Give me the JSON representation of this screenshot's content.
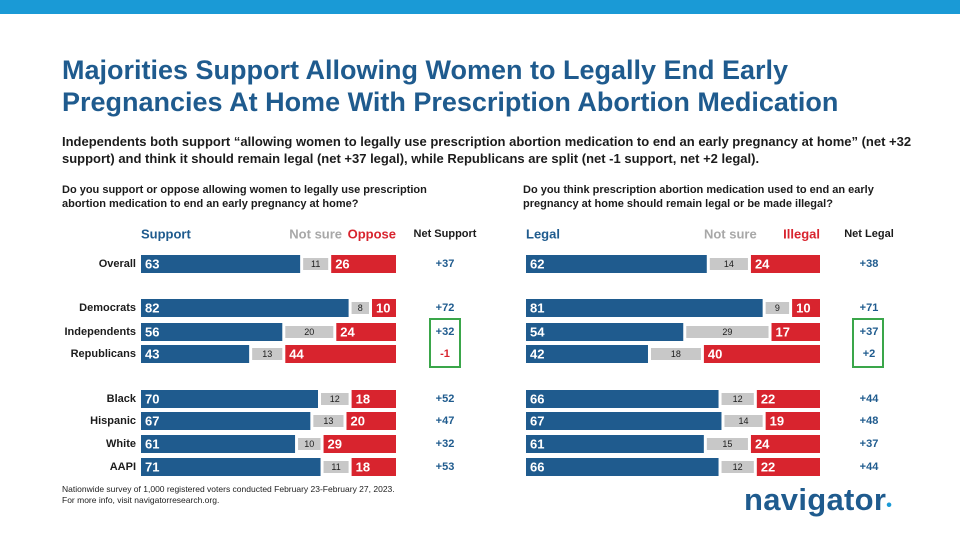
{
  "title": "Majorities Support Allowing Women to Legally End Early Pregnancies At Home With Prescription Abortion Medication",
  "subtitle": "Independents both support “allowing women to legally use prescription abortion medication to end an early pregnancy at home” (net +32 support) and think it should remain legal (net +37 legal), while Republicans are split (net -1 support, net +2 legal).",
  "footnote": {
    "line1": "Nationwide survey of 1,000 registered voters conducted February 23-February 27, 2023.",
    "line2": "For more info, visit navigatorresearch.org."
  },
  "logo": {
    "text": "navigator",
    "mark": "•"
  },
  "colors": {
    "blue": "#1f5b8e",
    "gray": "#c8c8c8",
    "red": "#d8242e",
    "highlight": "#3aa64a",
    "accent": "#1a9ad6"
  },
  "chart_data": [
    {
      "type": "bar",
      "stacked": true,
      "orientation": "horizontal",
      "title": "Do you support or oppose allowing women to legally use prescription abortion medication to end an early pregnancy at home?",
      "headers": {
        "positive": "Support",
        "neutral": "Not sure",
        "negative": "Oppose",
        "net": "Net Support"
      },
      "categories": [
        "Overall",
        "Democrats",
        "Independents",
        "Republicans",
        "Black",
        "Hispanic",
        "White",
        "AAPI"
      ],
      "series": [
        {
          "name": "Support",
          "values": [
            63,
            82,
            56,
            43,
            70,
            67,
            61,
            71
          ]
        },
        {
          "name": "Not sure",
          "values": [
            11,
            8,
            20,
            13,
            12,
            13,
            10,
            11
          ]
        },
        {
          "name": "Oppose",
          "values": [
            26,
            10,
            24,
            44,
            18,
            20,
            29,
            18
          ]
        }
      ],
      "net": [
        "+37",
        "+72",
        "+32",
        "-1",
        "+52",
        "+47",
        "+32",
        "+53"
      ],
      "highlighted": [
        "Independents",
        "Republicans"
      ],
      "xlim": [
        0,
        100
      ]
    },
    {
      "type": "bar",
      "stacked": true,
      "orientation": "horizontal",
      "title": "Do you think prescription abortion medication used to end an early pregnancy at home should remain legal or be made illegal?",
      "headers": {
        "positive": "Legal",
        "neutral": "Not sure",
        "negative": "Illegal",
        "net": "Net Legal"
      },
      "categories": [
        "Overall",
        "Democrats",
        "Independents",
        "Republicans",
        "Black",
        "Hispanic",
        "White",
        "AAPI"
      ],
      "series": [
        {
          "name": "Legal",
          "values": [
            62,
            81,
            54,
            42,
            66,
            67,
            61,
            66
          ]
        },
        {
          "name": "Not sure",
          "values": [
            14,
            9,
            29,
            18,
            12,
            14,
            15,
            12
          ]
        },
        {
          "name": "Illegal",
          "values": [
            24,
            10,
            17,
            40,
            22,
            19,
            24,
            22
          ]
        }
      ],
      "net": [
        "+38",
        "+71",
        "+37",
        "+2",
        "+44",
        "+48",
        "+37",
        "+44"
      ],
      "highlighted": [
        "Independents",
        "Republicans"
      ],
      "xlim": [
        0,
        100
      ]
    }
  ]
}
